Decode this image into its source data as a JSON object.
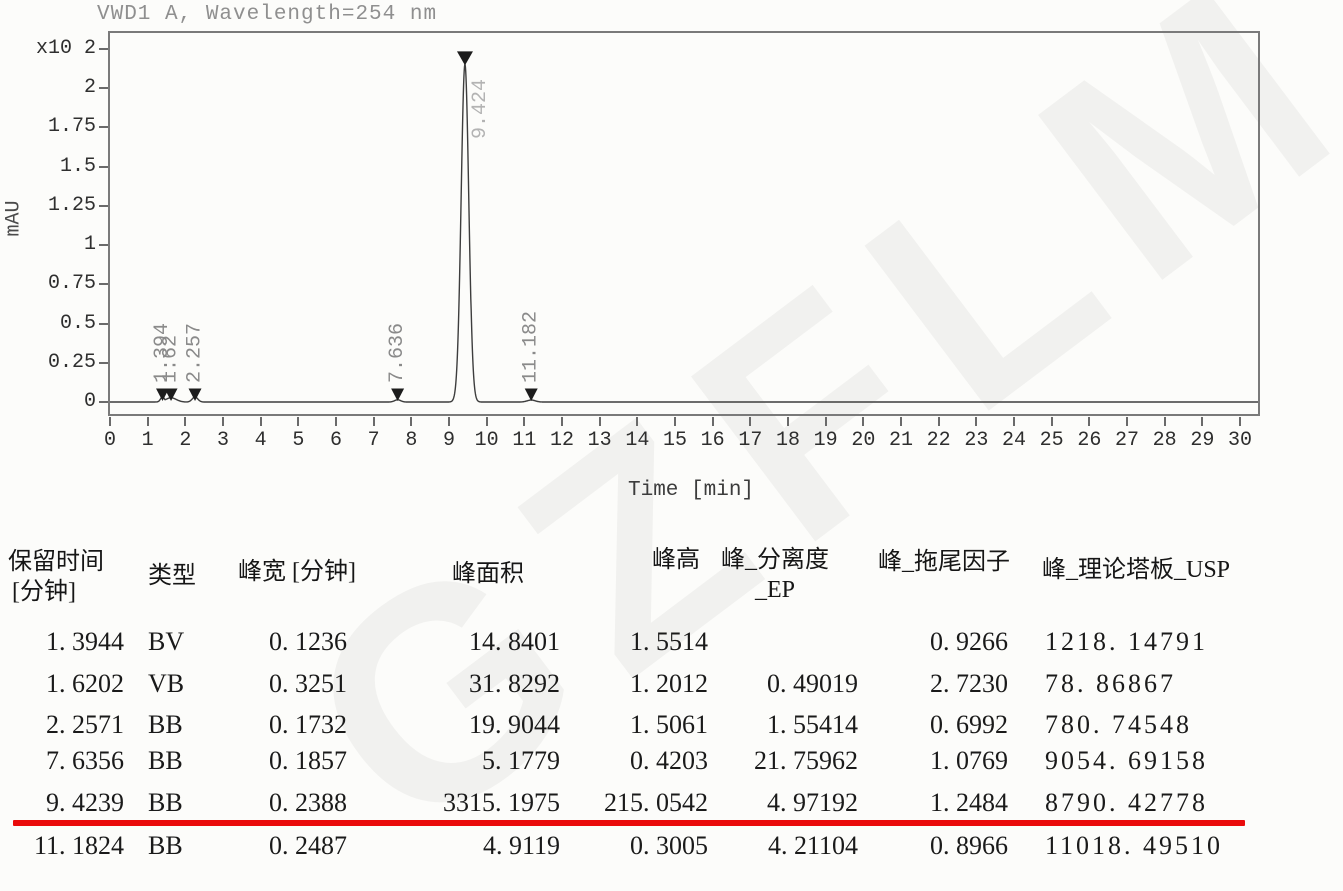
{
  "chart": {
    "title": "VWD1 A, Wavelength=254 nm",
    "y_axis": {
      "unit_label": "mAU",
      "ticks": [
        "x10 2",
        "2",
        "1.75",
        "1.5",
        "1.25",
        "1",
        "0.75",
        "0.5",
        "0.25",
        "0"
      ]
    },
    "x_axis": {
      "label": "Time [min]",
      "ticks": [
        "0",
        "1",
        "2",
        "3",
        "4",
        "5",
        "6",
        "7",
        "8",
        "9",
        "10",
        "11",
        "12",
        "13",
        "14",
        "15",
        "16",
        "17",
        "18",
        "19",
        "20",
        "21",
        "22",
        "23",
        "24",
        "25",
        "26",
        "27",
        "28",
        "29",
        "30"
      ]
    }
  },
  "chart_data": {
    "type": "line",
    "title": "VWD1 A, Wavelength=254 nm",
    "xlabel": "Time [min]",
    "ylabel": "mAU",
    "y_multiplier": "x10 2",
    "xlim": [
      0,
      30
    ],
    "ylim": [
      0,
      225
    ],
    "y_ticks": [
      0,
      0.25,
      0.5,
      0.75,
      1,
      1.25,
      1.5,
      1.75,
      2
    ],
    "x_tick_step": 1,
    "legend": "none",
    "grid": false,
    "peaks": [
      {
        "label": "1.394",
        "retention_min": 1.3944,
        "width_min": 0.1236,
        "height_mAU": 1.5514,
        "area": 14.8401
      },
      {
        "label": "1.62",
        "retention_min": 1.6202,
        "width_min": 0.3251,
        "height_mAU": 1.2012,
        "area": 31.8292
      },
      {
        "label": "2.257",
        "retention_min": 2.2571,
        "width_min": 0.1732,
        "height_mAU": 1.5061,
        "area": 19.9044
      },
      {
        "label": "7.636",
        "retention_min": 7.6356,
        "width_min": 0.1857,
        "height_mAU": 0.4203,
        "area": 5.1779
      },
      {
        "label": "9.424",
        "retention_min": 9.4239,
        "width_min": 0.2388,
        "height_mAU": 215.0542,
        "area": 3315.1975
      },
      {
        "label": "11.182",
        "retention_min": 11.1824,
        "width_min": 0.2487,
        "height_mAU": 0.3005,
        "area": 4.9119
      }
    ]
  },
  "table": {
    "headers": {
      "retention_line1": "保留时间",
      "retention_line2": "[分钟]",
      "type": "类型",
      "width": "峰宽 [分钟]",
      "area": "峰面积",
      "height": "峰高",
      "resolution_line1": "峰_分离度",
      "resolution_line2": "_EP",
      "tailing": "峰_拖尾因子",
      "plates": "峰_理论塔板_USP"
    },
    "rows": [
      [
        "1. 3944",
        "BV",
        "0. 1236",
        "14. 8401",
        "1. 5514",
        "",
        "0. 9266",
        "1218. 14791"
      ],
      [
        "1. 6202",
        "VB",
        "0. 3251",
        "31. 8292",
        "1. 2012",
        "0. 49019",
        "2. 7230",
        "78. 86867"
      ],
      [
        "2. 2571",
        "BB",
        "0. 1732",
        "19. 9044",
        "1. 5061",
        "1. 55414",
        "0. 6992",
        "780. 74548"
      ],
      [
        "7. 6356",
        "BB",
        "0. 1857",
        "5. 1779",
        "0. 4203",
        "21. 75962",
        "1. 0769",
        "9054. 69158"
      ],
      [
        "9. 4239",
        "BB",
        "0. 2388",
        "3315. 1975",
        "215. 0542",
        "4. 97192",
        "1. 2484",
        "8790. 42778"
      ],
      [
        "11. 1824",
        "BB",
        "0. 2487",
        "4. 9119",
        "0. 3005",
        "4. 21104",
        "0. 8966",
        "11018. 49510"
      ]
    ],
    "red_underline": {
      "color": "#ea0b0b",
      "under_row_retention": "9. 4239"
    }
  },
  "watermark": "GZFLM",
  "colors": {
    "trace": "#3d3d3d",
    "axis_text": "#2e2e2e",
    "faint_label": "#8a8a8a",
    "red_line": "#ea0b0b"
  }
}
